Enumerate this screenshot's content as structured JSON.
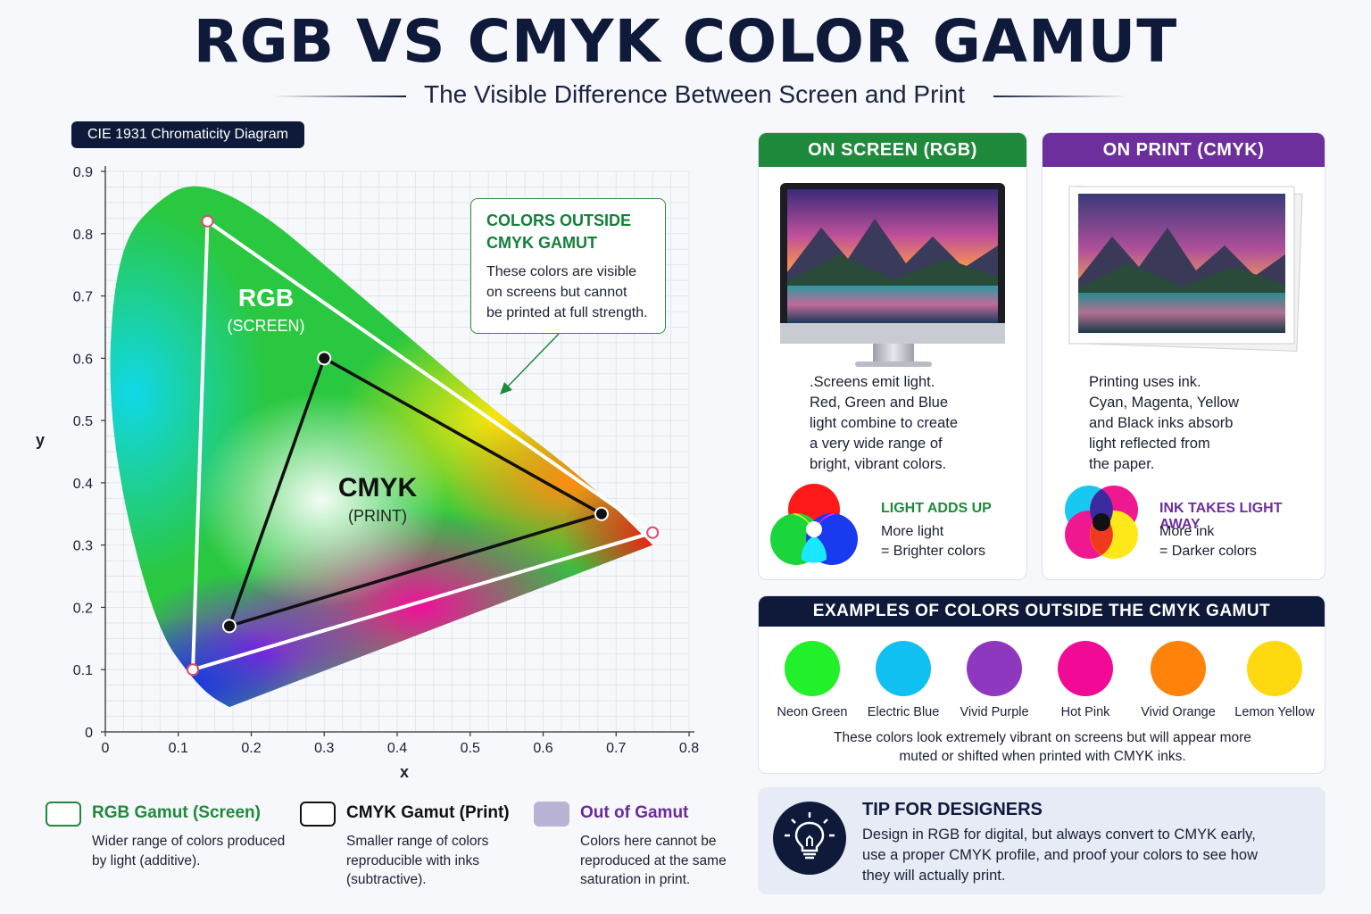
{
  "header": {
    "title": "RGB VS CMYK COLOR GAMUT",
    "subtitle": "The Visible Difference Between Screen and Print"
  },
  "diagram": {
    "tag": "CIE 1931 Chromaticity Diagram",
    "rgb_label": "RGB",
    "rgb_sublabel": "(SCREEN)",
    "cmyk_label": "CMYK",
    "cmyk_sublabel": "(PRINT)",
    "callout": {
      "title": "COLORS OUTSIDE\nCMYK GAMUT",
      "text": "These colors are visible\non screens but cannot\nbe printed at full strength."
    }
  },
  "chart_data": {
    "type": "scatter",
    "xlabel": "x",
    "ylabel": "y",
    "xlim": [
      0,
      0.8
    ],
    "ylim": [
      0,
      0.9
    ],
    "x_ticks": [
      "0",
      "0.1",
      "0.2",
      "0.3",
      "0.4",
      "0.5",
      "0.6",
      "0.7",
      "0.8"
    ],
    "y_ticks": [
      "0",
      "0.1",
      "0.2",
      "0.3",
      "0.4",
      "0.5",
      "0.6",
      "0.7",
      "0.8",
      "0.9"
    ],
    "grid": true,
    "series": [
      {
        "name": "RGB",
        "points": [
          [
            0.14,
            0.82
          ],
          [
            0.75,
            0.32
          ],
          [
            0.12,
            0.1
          ]
        ]
      },
      {
        "name": "CMYK",
        "points": [
          [
            0.3,
            0.6
          ],
          [
            0.68,
            0.35
          ],
          [
            0.17,
            0.17
          ]
        ]
      }
    ],
    "spectral_locus": [
      [
        0.17,
        0.04
      ],
      [
        0.14,
        0.06
      ],
      [
        0.11,
        0.1
      ],
      [
        0.08,
        0.15
      ],
      [
        0.05,
        0.25
      ],
      [
        0.02,
        0.4
      ],
      [
        0.005,
        0.55
      ],
      [
        0.01,
        0.7
      ],
      [
        0.03,
        0.8
      ],
      [
        0.07,
        0.85
      ],
      [
        0.11,
        0.88
      ],
      [
        0.16,
        0.87
      ],
      [
        0.23,
        0.82
      ],
      [
        0.3,
        0.75
      ],
      [
        0.38,
        0.67
      ],
      [
        0.46,
        0.59
      ],
      [
        0.54,
        0.51
      ],
      [
        0.62,
        0.44
      ],
      [
        0.69,
        0.37
      ],
      [
        0.75,
        0.3
      ]
    ]
  },
  "legend": [
    {
      "label": "RGB Gamut (Screen)",
      "desc": "Wider range of colors produced\nby light (additive).",
      "color": "#1f8a3b"
    },
    {
      "label": "CMYK Gamut (Print)",
      "desc": "Smaller range of colors\nreproducible with inks\n(subtractive).",
      "color": "#111111"
    },
    {
      "label": "Out of Gamut",
      "desc": "Colors here cannot be\nreproduced at the same\nsaturation in print.",
      "color": "#6a2a9a"
    }
  ],
  "rgb_panel": {
    "header": "ON SCREEN (RGB)",
    "color": "#1f8a3b",
    "text": ".Screens emit light.\nRed, Green and Blue\nlight combine to create\na very wide range of\nbright, vibrant colors.",
    "note_title": "LIGHT ADDS UP",
    "note_text": "More light\n= Brighter colors"
  },
  "cmyk_panel": {
    "header": "ON PRINT (CMYK)",
    "color": "#6d2f9c",
    "text": "Printing uses ink.\nCyan, Magenta, Yellow\nand Black inks absorb\nlight reflected from\nthe paper.",
    "note_title": "INK TAKES LIGHT AWAY",
    "note_text": "More ink\n= Darker colors"
  },
  "examples": {
    "header": "EXAMPLES OF COLORS OUTSIDE THE CMYK GAMUT",
    "items": [
      {
        "name": "Neon Green",
        "color": "#22f02a"
      },
      {
        "name": "Electric Blue",
        "color": "#0fc0f0"
      },
      {
        "name": "Vivid Purple",
        "color": "#8e38c0"
      },
      {
        "name": "Hot Pink",
        "color": "#f00a96"
      },
      {
        "name": "Vivid Orange",
        "color": "#ff820a"
      },
      {
        "name": "Lemon Yellow",
        "color": "#ffd90f"
      }
    ],
    "note": "These colors look extremely vibrant on screens but will appear more\nmuted or shifted when printed with CMYK inks."
  },
  "tip": {
    "icon": "lightbulb-icon",
    "title": "TIP FOR DESIGNERS",
    "text": "Design in RGB for digital, but always convert to CMYK early,\nuse a proper CMYK profile, and proof your colors to see how\nthey will actually print."
  }
}
